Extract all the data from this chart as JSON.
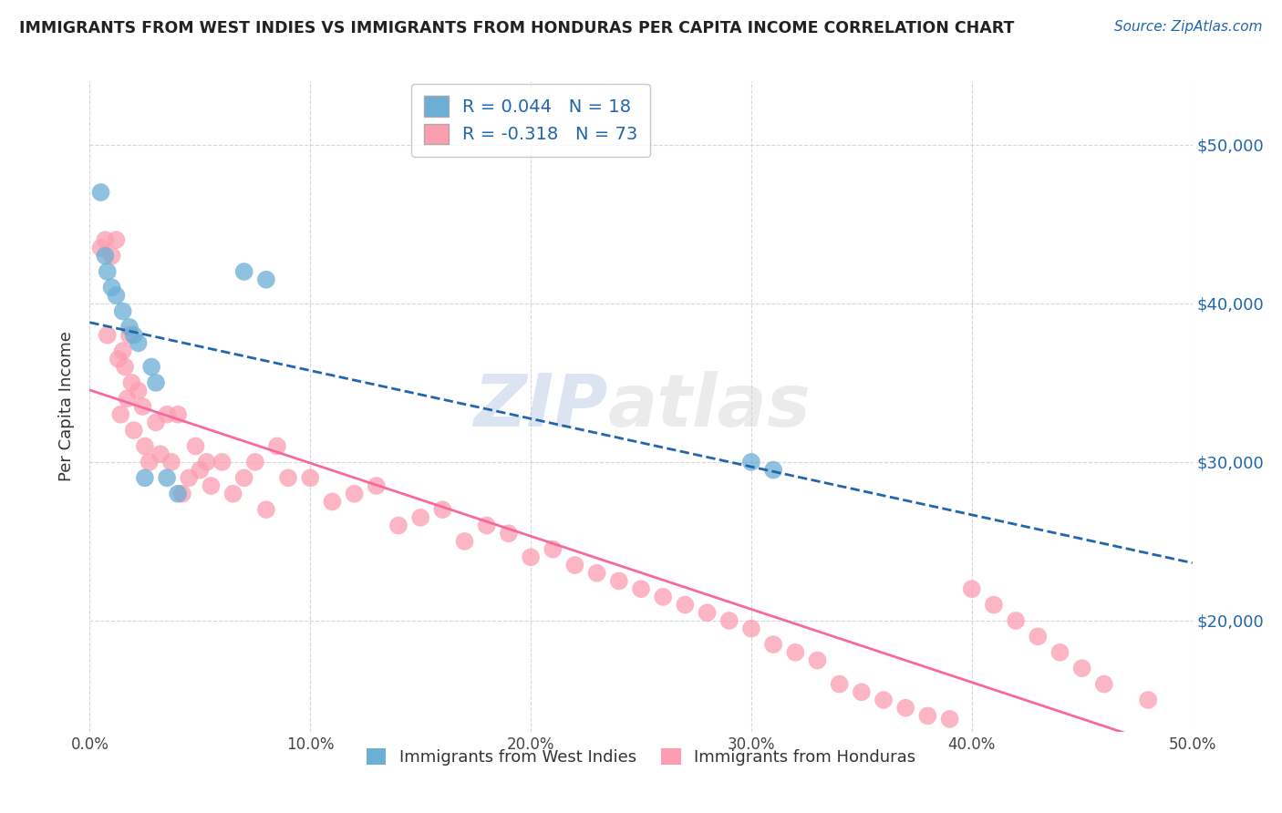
{
  "title": "IMMIGRANTS FROM WEST INDIES VS IMMIGRANTS FROM HONDURAS PER CAPITA INCOME CORRELATION CHART",
  "source": "Source: ZipAtlas.com",
  "ylabel": "Per Capita Income",
  "xlim": [
    0.0,
    0.5
  ],
  "ylim": [
    13000,
    54000
  ],
  "xtick_labels": [
    "0.0%",
    "10.0%",
    "20.0%",
    "30.0%",
    "40.0%",
    "50.0%"
  ],
  "xtick_vals": [
    0.0,
    0.1,
    0.2,
    0.3,
    0.4,
    0.5
  ],
  "ytick_labels": [
    "$20,000",
    "$30,000",
    "$40,000",
    "$50,000"
  ],
  "ytick_vals": [
    20000,
    30000,
    40000,
    50000
  ],
  "blue_R": 0.044,
  "blue_N": 18,
  "pink_R": -0.318,
  "pink_N": 73,
  "legend_label_blue": "Immigrants from West Indies",
  "legend_label_pink": "Immigrants from Honduras",
  "blue_color": "#6baed6",
  "pink_color": "#fc9db0",
  "blue_line_color": "#2166ac",
  "pink_line_color": "#f768a1",
  "watermark_zip": "ZIP",
  "watermark_atlas": "atlas",
  "background_color": "#ffffff",
  "grid_color": "#cccccc",
  "blue_scatter_x": [
    0.005,
    0.007,
    0.008,
    0.01,
    0.012,
    0.015,
    0.018,
    0.02,
    0.022,
    0.025,
    0.028,
    0.03,
    0.035,
    0.04,
    0.07,
    0.08,
    0.3,
    0.31
  ],
  "blue_scatter_y": [
    47000,
    43000,
    42000,
    41000,
    40500,
    39500,
    38500,
    38000,
    37500,
    29000,
    36000,
    35000,
    29000,
    28000,
    42000,
    41500,
    30000,
    29500
  ],
  "pink_scatter_x": [
    0.005,
    0.007,
    0.008,
    0.01,
    0.012,
    0.013,
    0.014,
    0.015,
    0.016,
    0.017,
    0.018,
    0.019,
    0.02,
    0.022,
    0.024,
    0.025,
    0.027,
    0.03,
    0.032,
    0.035,
    0.037,
    0.04,
    0.042,
    0.045,
    0.048,
    0.05,
    0.053,
    0.055,
    0.06,
    0.065,
    0.07,
    0.075,
    0.08,
    0.085,
    0.09,
    0.1,
    0.11,
    0.12,
    0.13,
    0.14,
    0.15,
    0.16,
    0.17,
    0.18,
    0.19,
    0.2,
    0.21,
    0.22,
    0.23,
    0.24,
    0.25,
    0.26,
    0.27,
    0.28,
    0.29,
    0.3,
    0.31,
    0.32,
    0.33,
    0.34,
    0.35,
    0.36,
    0.37,
    0.38,
    0.39,
    0.4,
    0.41,
    0.42,
    0.43,
    0.44,
    0.45,
    0.46,
    0.48
  ],
  "pink_scatter_y": [
    43500,
    44000,
    38000,
    43000,
    44000,
    36500,
    33000,
    37000,
    36000,
    34000,
    38000,
    35000,
    32000,
    34500,
    33500,
    31000,
    30000,
    32500,
    30500,
    33000,
    30000,
    33000,
    28000,
    29000,
    31000,
    29500,
    30000,
    28500,
    30000,
    28000,
    29000,
    30000,
    27000,
    31000,
    29000,
    29000,
    27500,
    28000,
    28500,
    26000,
    26500,
    27000,
    25000,
    26000,
    25500,
    24000,
    24500,
    23500,
    23000,
    22500,
    22000,
    21500,
    21000,
    20500,
    20000,
    19500,
    18500,
    18000,
    17500,
    16000,
    15500,
    15000,
    14500,
    14000,
    13800,
    22000,
    21000,
    20000,
    19000,
    18000,
    17000,
    16000,
    15000
  ]
}
